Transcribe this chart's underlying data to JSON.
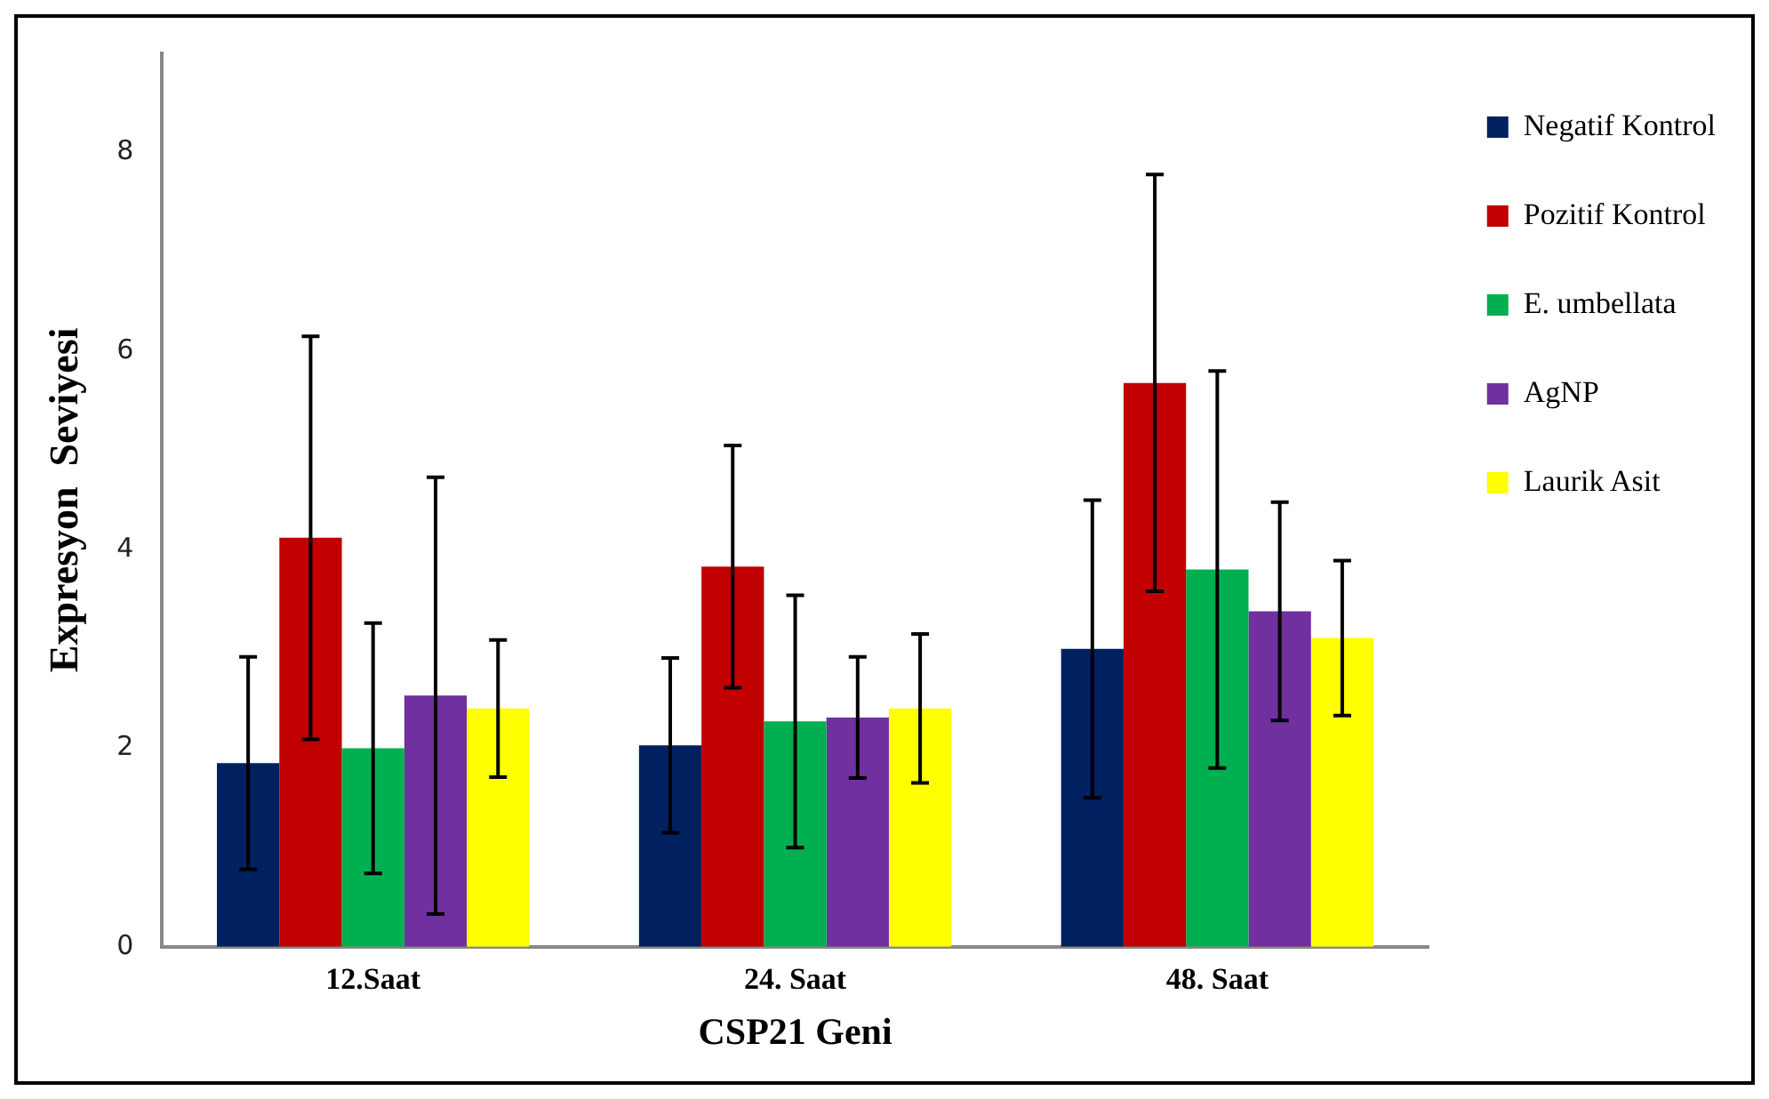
{
  "chart_data": {
    "type": "bar",
    "xlabel": "CSP21 Geni",
    "ylabel": "Expresyon  Seviyesi",
    "categories": [
      "12.Saat",
      "24. Saat",
      "48. Saat"
    ],
    "series": [
      {
        "name": "Negatif Kontrol",
        "color": "#002060",
        "values": [
          1.85,
          2.03,
          3.0
        ],
        "errors": [
          1.07,
          0.88,
          1.5
        ]
      },
      {
        "name": "Pozitif Kontrol",
        "color": "#c00000",
        "values": [
          4.12,
          3.83,
          5.68
        ],
        "errors": [
          2.03,
          1.22,
          2.1
        ]
      },
      {
        "name": "E. umbellata",
        "color": "#00b050",
        "values": [
          2.0,
          2.27,
          3.8
        ],
        "errors": [
          1.26,
          1.27,
          2.0
        ]
      },
      {
        "name": "AgNP",
        "color": "#7030a0",
        "values": [
          2.53,
          2.31,
          3.38
        ],
        "errors": [
          2.2,
          0.61,
          1.1
        ]
      },
      {
        "name": "Laurik Asit",
        "color": "#ffff00",
        "values": [
          2.4,
          2.4,
          3.11
        ],
        "errors": [
          0.69,
          0.75,
          0.78
        ]
      }
    ],
    "ylim": [
      0,
      9
    ],
    "yticks": [
      0,
      2,
      4,
      6,
      8
    ],
    "grid": false,
    "legend": "right"
  }
}
